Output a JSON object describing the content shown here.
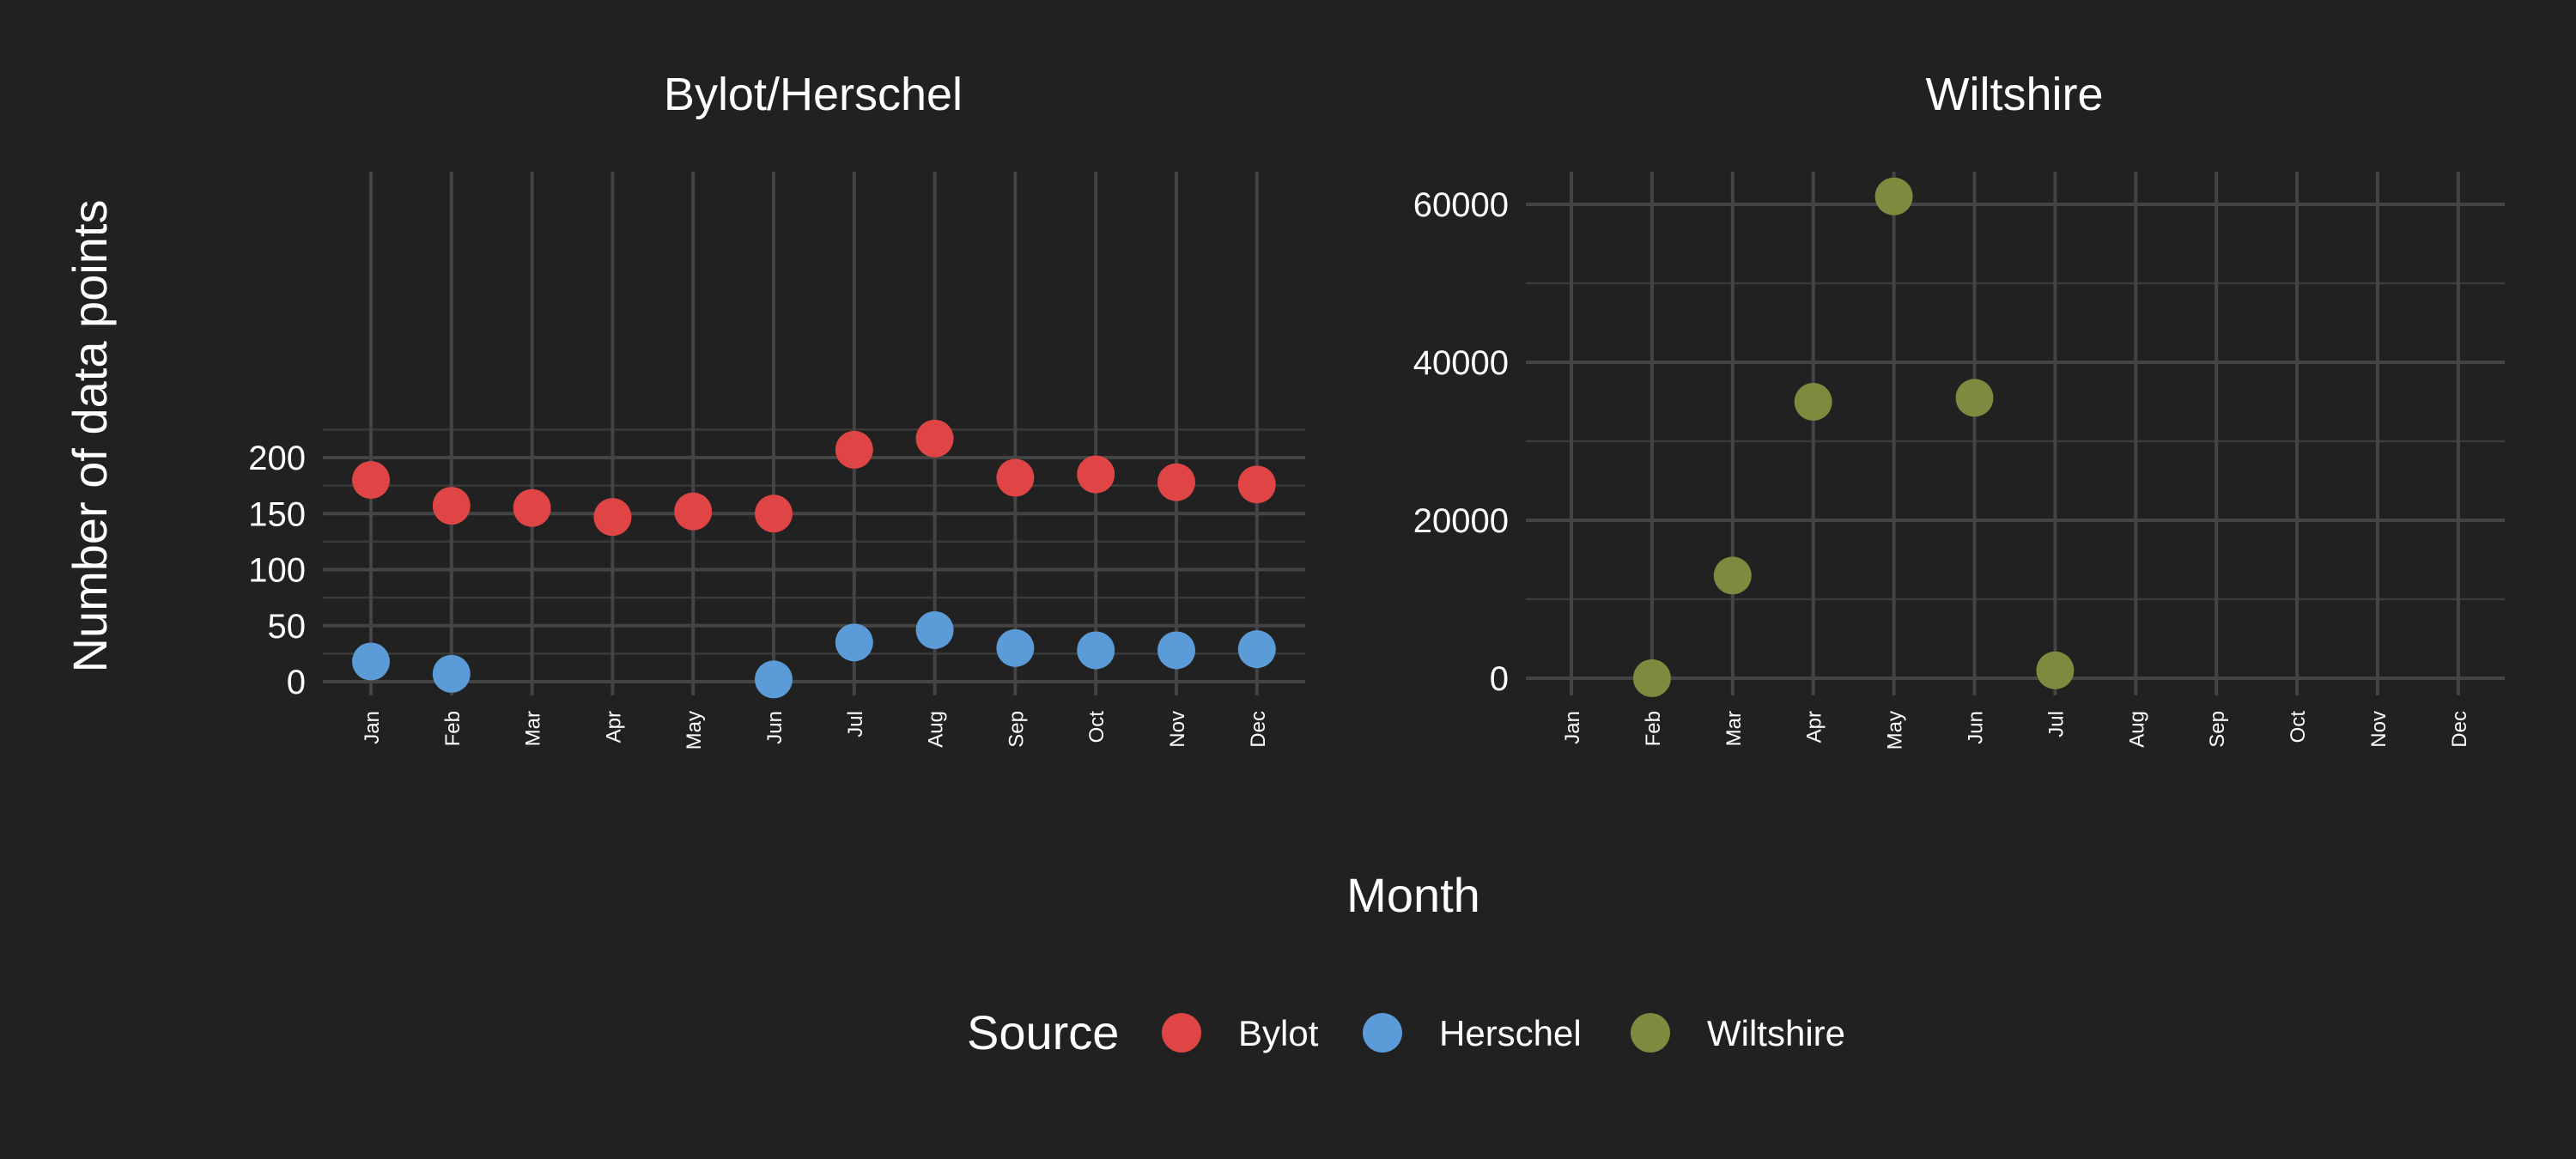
{
  "chart_data": {
    "type": "scatter",
    "ylabel": "Number of data points",
    "xlabel": "Month",
    "legend": {
      "title": "Source",
      "placement": "bottom",
      "entries": [
        {
          "name": "Bylot",
          "color": "#e04545"
        },
        {
          "name": "Herschel",
          "color": "#5b9bd8"
        },
        {
          "name": "Wiltshire",
          "color": "#7f8a3f"
        }
      ]
    },
    "grid": true,
    "panels": [
      {
        "title": "Bylot/Herschel",
        "categories": [
          "Jan",
          "Feb",
          "Mar",
          "Apr",
          "May",
          "Jun",
          "Jul",
          "Aug",
          "Sep",
          "Oct",
          "Nov",
          "Dec"
        ],
        "ylim": [
          0,
          225
        ],
        "yticks": [
          0,
          50,
          100,
          150,
          200
        ],
        "series": [
          {
            "name": "Bylot",
            "color": "#e04545",
            "x": [
              "Jan",
              "Feb",
              "Mar",
              "Apr",
              "May",
              "Jun",
              "Jul",
              "Aug",
              "Sep",
              "Oct",
              "Nov",
              "Dec"
            ],
            "values": [
              180,
              157,
              155,
              147,
              152,
              150,
              207,
              217,
              182,
              185,
              178,
              176
            ]
          },
          {
            "name": "Herschel",
            "color": "#5b9bd8",
            "x": [
              "Jan",
              "Feb",
              "Jun",
              "Jul",
              "Aug",
              "Sep",
              "Oct",
              "Nov",
              "Dec"
            ],
            "values": [
              18,
              7,
              2,
              35,
              46,
              30,
              28,
              28,
              29
            ]
          }
        ]
      },
      {
        "title": "Wiltshire",
        "categories": [
          "Jan",
          "Feb",
          "Mar",
          "Apr",
          "May",
          "Jun",
          "Jul",
          "Aug",
          "Sep",
          "Oct",
          "Nov",
          "Dec"
        ],
        "ylim": [
          0,
          62000
        ],
        "yticks": [
          0,
          20000,
          40000,
          60000
        ],
        "series": [
          {
            "name": "Wiltshire",
            "color": "#7f8a3f",
            "x": [
              "Feb",
              "Mar",
              "Apr",
              "May",
              "Jun",
              "Jul"
            ],
            "values": [
              0,
              13000,
              35000,
              61000,
              35500,
              1000
            ]
          }
        ]
      }
    ]
  }
}
